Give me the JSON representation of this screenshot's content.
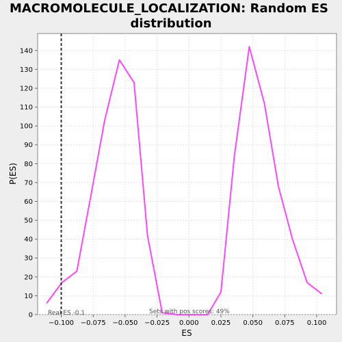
{
  "chart_data": {
    "type": "line",
    "title_lines": [
      "MACROMOLECULE_LOCALIZATION: Random ES",
      "distribution"
    ],
    "xlabel": "ES",
    "ylabel": "P(ES)",
    "xlim": [
      -0.1185,
      0.1155
    ],
    "ylim": [
      0,
      149
    ],
    "x_ticks": [
      -0.1,
      -0.075,
      -0.05,
      -0.025,
      0.0,
      0.025,
      0.05,
      0.075,
      0.1
    ],
    "x_tick_labels": [
      "−0.100",
      "−0.075",
      "−0.050",
      "−0.025",
      "0.000",
      "0.025",
      "0.050",
      "0.075",
      "0.100"
    ],
    "y_ticks": [
      0,
      10,
      20,
      30,
      40,
      50,
      60,
      70,
      80,
      90,
      100,
      110,
      120,
      130,
      140
    ],
    "y_tick_labels": [
      "0",
      "10",
      "20",
      "30",
      "40",
      "50",
      "60",
      "70",
      "80",
      "90",
      "100",
      "110",
      "120",
      "130",
      "140"
    ],
    "grid": true,
    "series": [
      {
        "color": "#ff44ff",
        "x": [
          -0.1115,
          -0.0995,
          -0.0878,
          -0.0763,
          -0.066,
          -0.0545,
          -0.043,
          -0.0325,
          -0.021,
          -0.009,
          0.003,
          0.0145,
          0.025,
          0.0355,
          0.0472,
          0.059,
          0.07,
          0.081,
          0.0925,
          0.104
        ],
        "y": [
          6,
          17,
          23,
          65,
          103,
          135,
          123,
          42,
          1,
          0,
          0,
          0,
          12,
          84,
          142,
          112,
          68,
          40,
          17,
          11
        ]
      }
    ],
    "real_es": -0.1,
    "annotations": {
      "real_es_label": "Real ES -0.1",
      "pos_scores_label": "Sets with pos scores: 49%"
    }
  }
}
